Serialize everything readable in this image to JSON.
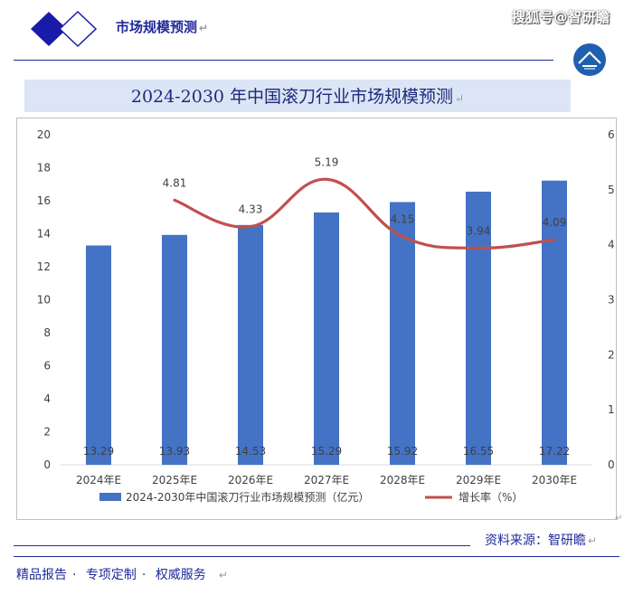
{
  "header": {
    "title": "市场规模预测",
    "watermark": "搜狐号@智研瞻",
    "colors": {
      "brand": "#1f2a9a",
      "logo_fill": "#1a1aa8"
    }
  },
  "source": "资料来源：智研瞻",
  "footer": {
    "items": [
      "精品报告",
      "专项定制",
      "权威服务"
    ],
    "separator": "·"
  },
  "chart_data": {
    "type": "bar",
    "title": "2024-2030 年中国滚刀行业市场规模预测",
    "categories": [
      "2024年E",
      "2025年E",
      "2026年E",
      "2027年E",
      "2028年E",
      "2029年E",
      "2030年E"
    ],
    "series": [
      {
        "name": "2024-2030年中国滚刀行业市场规模预测（亿元）",
        "type": "bar",
        "axis": "left",
        "color": "#4472c4",
        "values": [
          13.29,
          13.93,
          14.53,
          15.29,
          15.92,
          16.55,
          17.22
        ],
        "labels": [
          "13.29",
          "13.93",
          "14.53",
          "15.29",
          "15.92",
          "16.55",
          "17.22"
        ]
      },
      {
        "name": "增长率（%）",
        "type": "line",
        "axis": "right",
        "color": "#c0504d",
        "values": [
          null,
          4.81,
          4.33,
          5.19,
          4.15,
          3.94,
          4.09
        ],
        "labels": [
          null,
          "4.81",
          "4.33",
          "5.19",
          "4.15",
          "3.94",
          "4.09"
        ]
      }
    ],
    "ylim_left": [
      0,
      20
    ],
    "yticks_left": [
      "0",
      "2",
      "4",
      "6",
      "8",
      "10",
      "12",
      "14",
      "16",
      "18",
      "20"
    ],
    "ylim_right": [
      0,
      6
    ],
    "yticks_right": [
      "0",
      "1",
      "2",
      "3",
      "4",
      "5",
      "6"
    ],
    "grid": false,
    "legend": "bottom"
  }
}
